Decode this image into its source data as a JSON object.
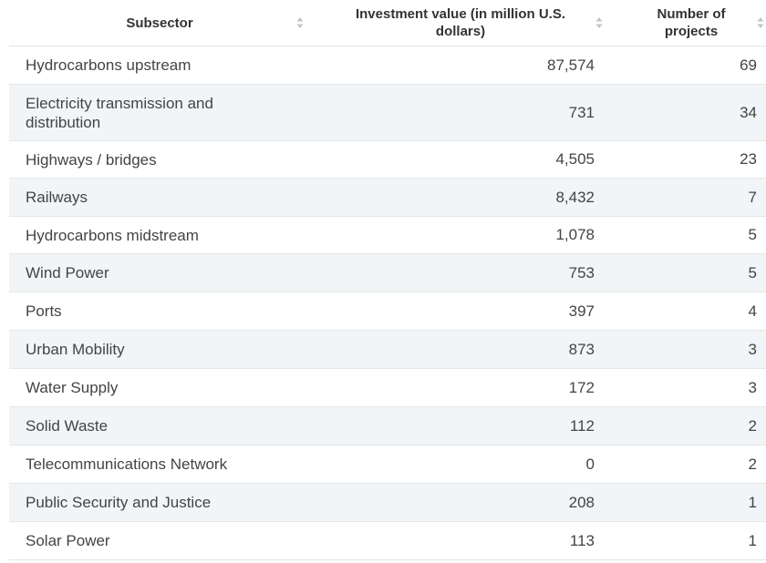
{
  "chart_data": {
    "type": "table",
    "columns": [
      "Subsector",
      "Investment value (in million U.S. dollars)",
      "Number of projects"
    ],
    "rows": [
      {
        "subsector": "Hydrocarbons upstream",
        "investment": "87,574",
        "projects": "69"
      },
      {
        "subsector": "Electricity transmission and distribution",
        "investment": "731",
        "projects": "34"
      },
      {
        "subsector": "Highways / bridges",
        "investment": "4,505",
        "projects": "23"
      },
      {
        "subsector": "Railways",
        "investment": "8,432",
        "projects": "7"
      },
      {
        "subsector": "Hydrocarbons midstream",
        "investment": "1,078",
        "projects": "5"
      },
      {
        "subsector": "Wind Power",
        "investment": "753",
        "projects": "5"
      },
      {
        "subsector": "Ports",
        "investment": "397",
        "projects": "4"
      },
      {
        "subsector": "Urban Mobility",
        "investment": "873",
        "projects": "3"
      },
      {
        "subsector": "Water Supply",
        "investment": "172",
        "projects": "3"
      },
      {
        "subsector": "Solid Waste",
        "investment": "112",
        "projects": "2"
      },
      {
        "subsector": "Telecommunications Network",
        "investment": "0",
        "projects": "2"
      },
      {
        "subsector": "Public Security and Justice",
        "investment": "208",
        "projects": "1"
      },
      {
        "subsector": "Solar Power",
        "investment": "113",
        "projects": "1"
      }
    ]
  },
  "colors": {
    "stripe": "#f1f5f8",
    "border": "#e6e6e6",
    "text": "#444444",
    "sort_icon": "#c0c4c8"
  },
  "icons": {
    "sort": "sort-arrows-icon"
  }
}
